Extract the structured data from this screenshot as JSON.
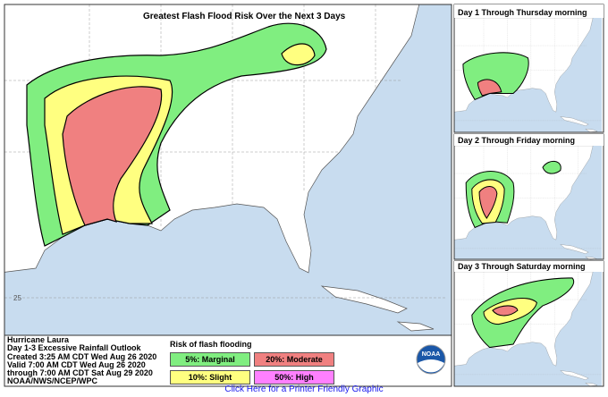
{
  "header": {
    "title": "Greatest Flash Flood Risk Over the Next 3 Days"
  },
  "panels": [
    {
      "title": "Day 1 Through Thursday morning"
    },
    {
      "title": "Day 2 Through Friday morning"
    },
    {
      "title": "Day 3 Through Saturday morning"
    }
  ],
  "info": {
    "lines": [
      "Hurricane Laura",
      "Day 1-3 Excessive Rainfall Outlook",
      "Created 3:25 AM CDT Wed Aug 26 2020",
      "Valid 7:00 AM CDT Wed Aug 26 2020",
      "through 7:00 AM CDT Sat Aug 29 2020",
      "NOAA/NWS/NCEP/WPC"
    ]
  },
  "legend": {
    "title": "Risk of flash flooding",
    "items": [
      {
        "label": "5%: Marginal",
        "color": "#80ee80"
      },
      {
        "label": "20%: Moderate",
        "color": "#f08080"
      },
      {
        "label": "10%: Slight",
        "color": "#ffff80"
      },
      {
        "label": "50%: High",
        "color": "#ff80ff"
      }
    ]
  },
  "map": {
    "lat_label": "25"
  },
  "logo": "NOAA",
  "footer": {
    "link": "Click Here for a Printer Friendly Graphic"
  }
}
